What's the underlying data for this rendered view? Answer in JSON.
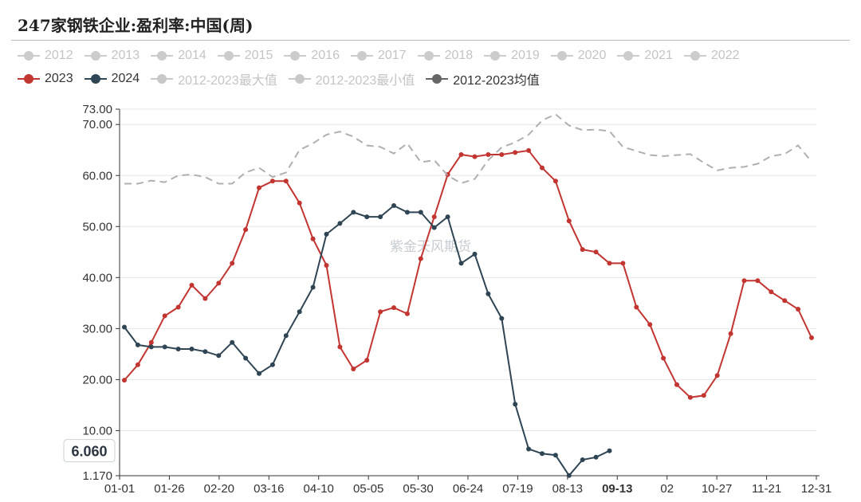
{
  "chart_data": {
    "type": "line",
    "title": "247家钢铁企业:盈利率:中国(周)",
    "ylim": [
      1.17,
      73.0
    ],
    "y_ticks": [
      "73.00",
      "70.00",
      "60.00",
      "50.00",
      "40.00",
      "30.00",
      "20.00",
      "10.00",
      "1.170"
    ],
    "x_ticks": [
      "01-01",
      "01-26",
      "02-20",
      "03-16",
      "04-10",
      "05-05",
      "05-30",
      "06-24",
      "07-19",
      "08-13",
      "09-13",
      "10-02",
      "10-27",
      "11-21",
      "12-31"
    ],
    "x_tick_labels_shown": [
      "01-01",
      "01-26",
      "02-20",
      "03-16",
      "04-10",
      "05-05",
      "05-30",
      "06-24",
      "07-19",
      "08-13",
      "09-13",
      "02",
      "10-27",
      "11-21",
      "12-31"
    ],
    "highlight_x": "09-13",
    "y_pointer_label": "6.060",
    "watermark": "紫金天风期货",
    "legend_inactive": [
      "2012",
      "2013",
      "2014",
      "2015",
      "2016",
      "2017",
      "2018",
      "2019",
      "2020",
      "2021",
      "2022"
    ],
    "legend_row2": [
      {
        "name": "2023",
        "color": "#c23531",
        "active": true
      },
      {
        "name": "2024",
        "color": "#2f4554",
        "active": true
      },
      {
        "name": "2012-2023最大值",
        "color": "#c8c8c8",
        "active": false
      },
      {
        "name": "2012-2023最小值",
        "color": "#c8c8c8",
        "active": false
      },
      {
        "name": "2012-2023均值",
        "color": "#666666",
        "active": true
      }
    ],
    "series": [
      {
        "name": "2023",
        "color": "#c23531",
        "values": [
          19.9,
          22.9,
          27.3,
          32.5,
          34.2,
          38.5,
          35.9,
          38.9,
          42.8,
          49.4,
          57.6,
          58.9,
          58.9,
          54.6,
          47.6,
          42.4,
          26.4,
          22.1,
          23.8,
          33.3,
          34.1,
          32.9,
          43.7,
          51.9,
          60.2,
          64.1,
          63.7,
          64.1,
          64.1,
          64.5,
          64.9,
          61.5,
          58.9,
          51.1,
          45.5,
          45.0,
          42.8,
          42.8,
          34.2,
          30.8,
          24.2,
          19.0,
          16.5,
          16.9,
          20.8,
          29.0,
          39.4,
          39.4,
          37.2,
          35.5,
          33.8,
          28.2
        ]
      },
      {
        "name": "2024",
        "color": "#2f4554",
        "values": [
          30.3,
          26.8,
          26.4,
          26.4,
          26.0,
          26.0,
          25.5,
          24.7,
          27.3,
          24.2,
          21.2,
          22.9,
          28.6,
          33.3,
          38.1,
          48.5,
          50.6,
          52.8,
          51.9,
          51.9,
          54.1,
          52.8,
          52.8,
          49.8,
          51.9,
          42.8,
          44.6,
          36.8,
          32.0,
          15.2,
          6.4,
          5.5,
          5.2,
          1.2,
          4.3,
          4.8,
          6.06
        ]
      },
      {
        "name": "2012-2023均值",
        "color": "#b0b0b0",
        "values": [
          58.4,
          58.4,
          59.0,
          58.7,
          60.0,
          60.2,
          59.7,
          58.4,
          58.4,
          60.6,
          61.5,
          59.7,
          60.6,
          65.0,
          66.3,
          68.0,
          68.6,
          67.6,
          65.9,
          65.6,
          64.3,
          66.3,
          62.6,
          63.0,
          60.0,
          58.5,
          59.3,
          63.0,
          65.5,
          66.5,
          68.0,
          70.8,
          72.0,
          69.8,
          68.9,
          69.0,
          68.7,
          65.6,
          64.8,
          64.0,
          63.8,
          64.0,
          64.2,
          62.5,
          61.0,
          61.5,
          61.7,
          62.3,
          63.8,
          64.2,
          65.9,
          62.7
        ]
      }
    ]
  }
}
